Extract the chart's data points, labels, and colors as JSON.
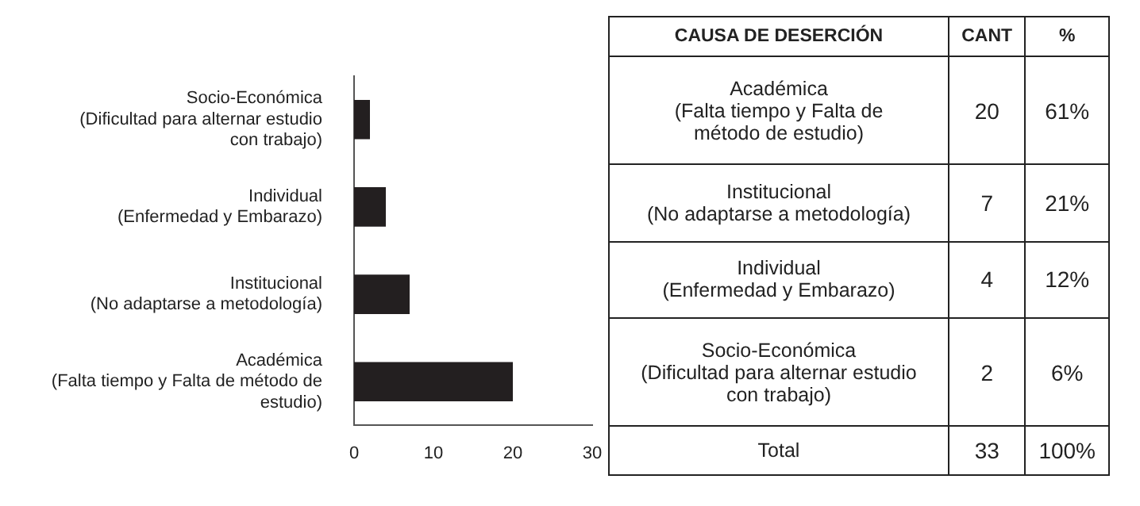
{
  "chart_data": [
    {
      "type": "bar",
      "orientation": "horizontal",
      "categories": [
        "Socio-Económica\n(Dificultad para alternar estudio\ncon trabajo)",
        "Individual\n(Enfermedad y Embarazo)",
        "Institucional\n(No adaptarse a metodología)",
        "Académica\n(Falta tiempo y Falta de método de\nestudio)"
      ],
      "values": [
        2,
        4,
        7,
        20
      ],
      "color": "#231f20",
      "xlim": [
        0,
        30
      ],
      "xticks": [
        0,
        10,
        20,
        30
      ],
      "grid": false,
      "legend": false
    },
    {
      "type": "other",
      "annotations": [
        "CAUSA DE DESERCIÓN",
        "CANT",
        "%",
        "Académica\n(Falta tiempo y Falta de\nmétodo de estudio)",
        "20",
        "61%",
        "Institucional\n(No adaptarse a metodología)",
        "7",
        "21%",
        "Individual\n(Enfermedad y Embarazo)",
        "4",
        "12%",
        "Socio-Económica\n(Dificultad para alternar estudio\ncon trabajo)",
        "2",
        "6%",
        "Total",
        "33",
        "100%"
      ]
    }
  ]
}
